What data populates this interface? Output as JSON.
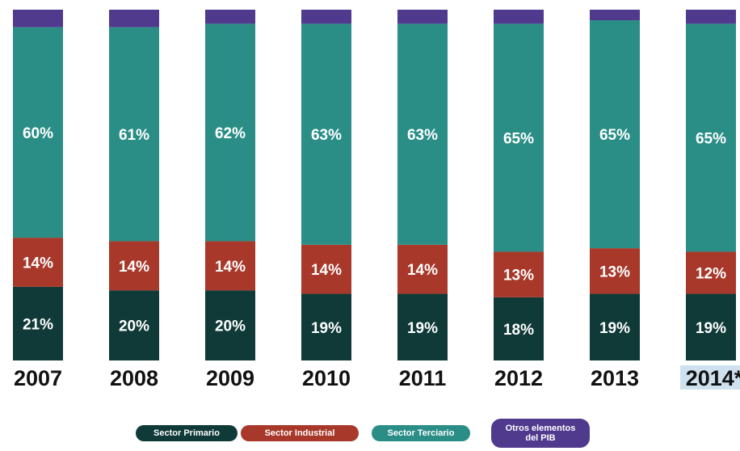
{
  "chart_data": {
    "type": "bar",
    "stacked": true,
    "categories": [
      "2007",
      "2008",
      "2009",
      "2010",
      "2011",
      "2012",
      "2013",
      "2014*"
    ],
    "highlighted_category": "2014*",
    "series": [
      {
        "name": "Sector Primario",
        "color": "#0f3a38",
        "values": [
          21,
          20,
          20,
          19,
          19,
          18,
          19,
          19
        ]
      },
      {
        "name": "Sector Industrial",
        "color": "#a8382a",
        "values": [
          14,
          14,
          14,
          14,
          14,
          13,
          13,
          12
        ]
      },
      {
        "name": "Sector Terciario",
        "color": "#2a8e86",
        "values": [
          60,
          61,
          62,
          63,
          63,
          65,
          65,
          65
        ]
      },
      {
        "name": "Otros elementos del PIB",
        "color": "#4f3a8e",
        "values": [
          5,
          5,
          4,
          4,
          4,
          4,
          3,
          4
        ]
      }
    ],
    "data_labels": {
      "Sector Primario": [
        "21%",
        "20%",
        "20%",
        "19%",
        "19%",
        "18%",
        "19%",
        "19%"
      ],
      "Sector Industrial": [
        "14%",
        "14%",
        "14%",
        "14%",
        "14%",
        "13%",
        "13%",
        "12%"
      ],
      "Sector Terciario": [
        "60%",
        "61%",
        "62%",
        "63%",
        "63%",
        "65%",
        "65%",
        "65%"
      ]
    },
    "legend_position": "bottom",
    "grid": false
  },
  "legend": {
    "primario": "Sector Primario",
    "industrial": "Sector Industrial",
    "terciario": "Sector Terciario",
    "otros_line1": "Otros elementos",
    "otros_line2": "del PIB"
  }
}
